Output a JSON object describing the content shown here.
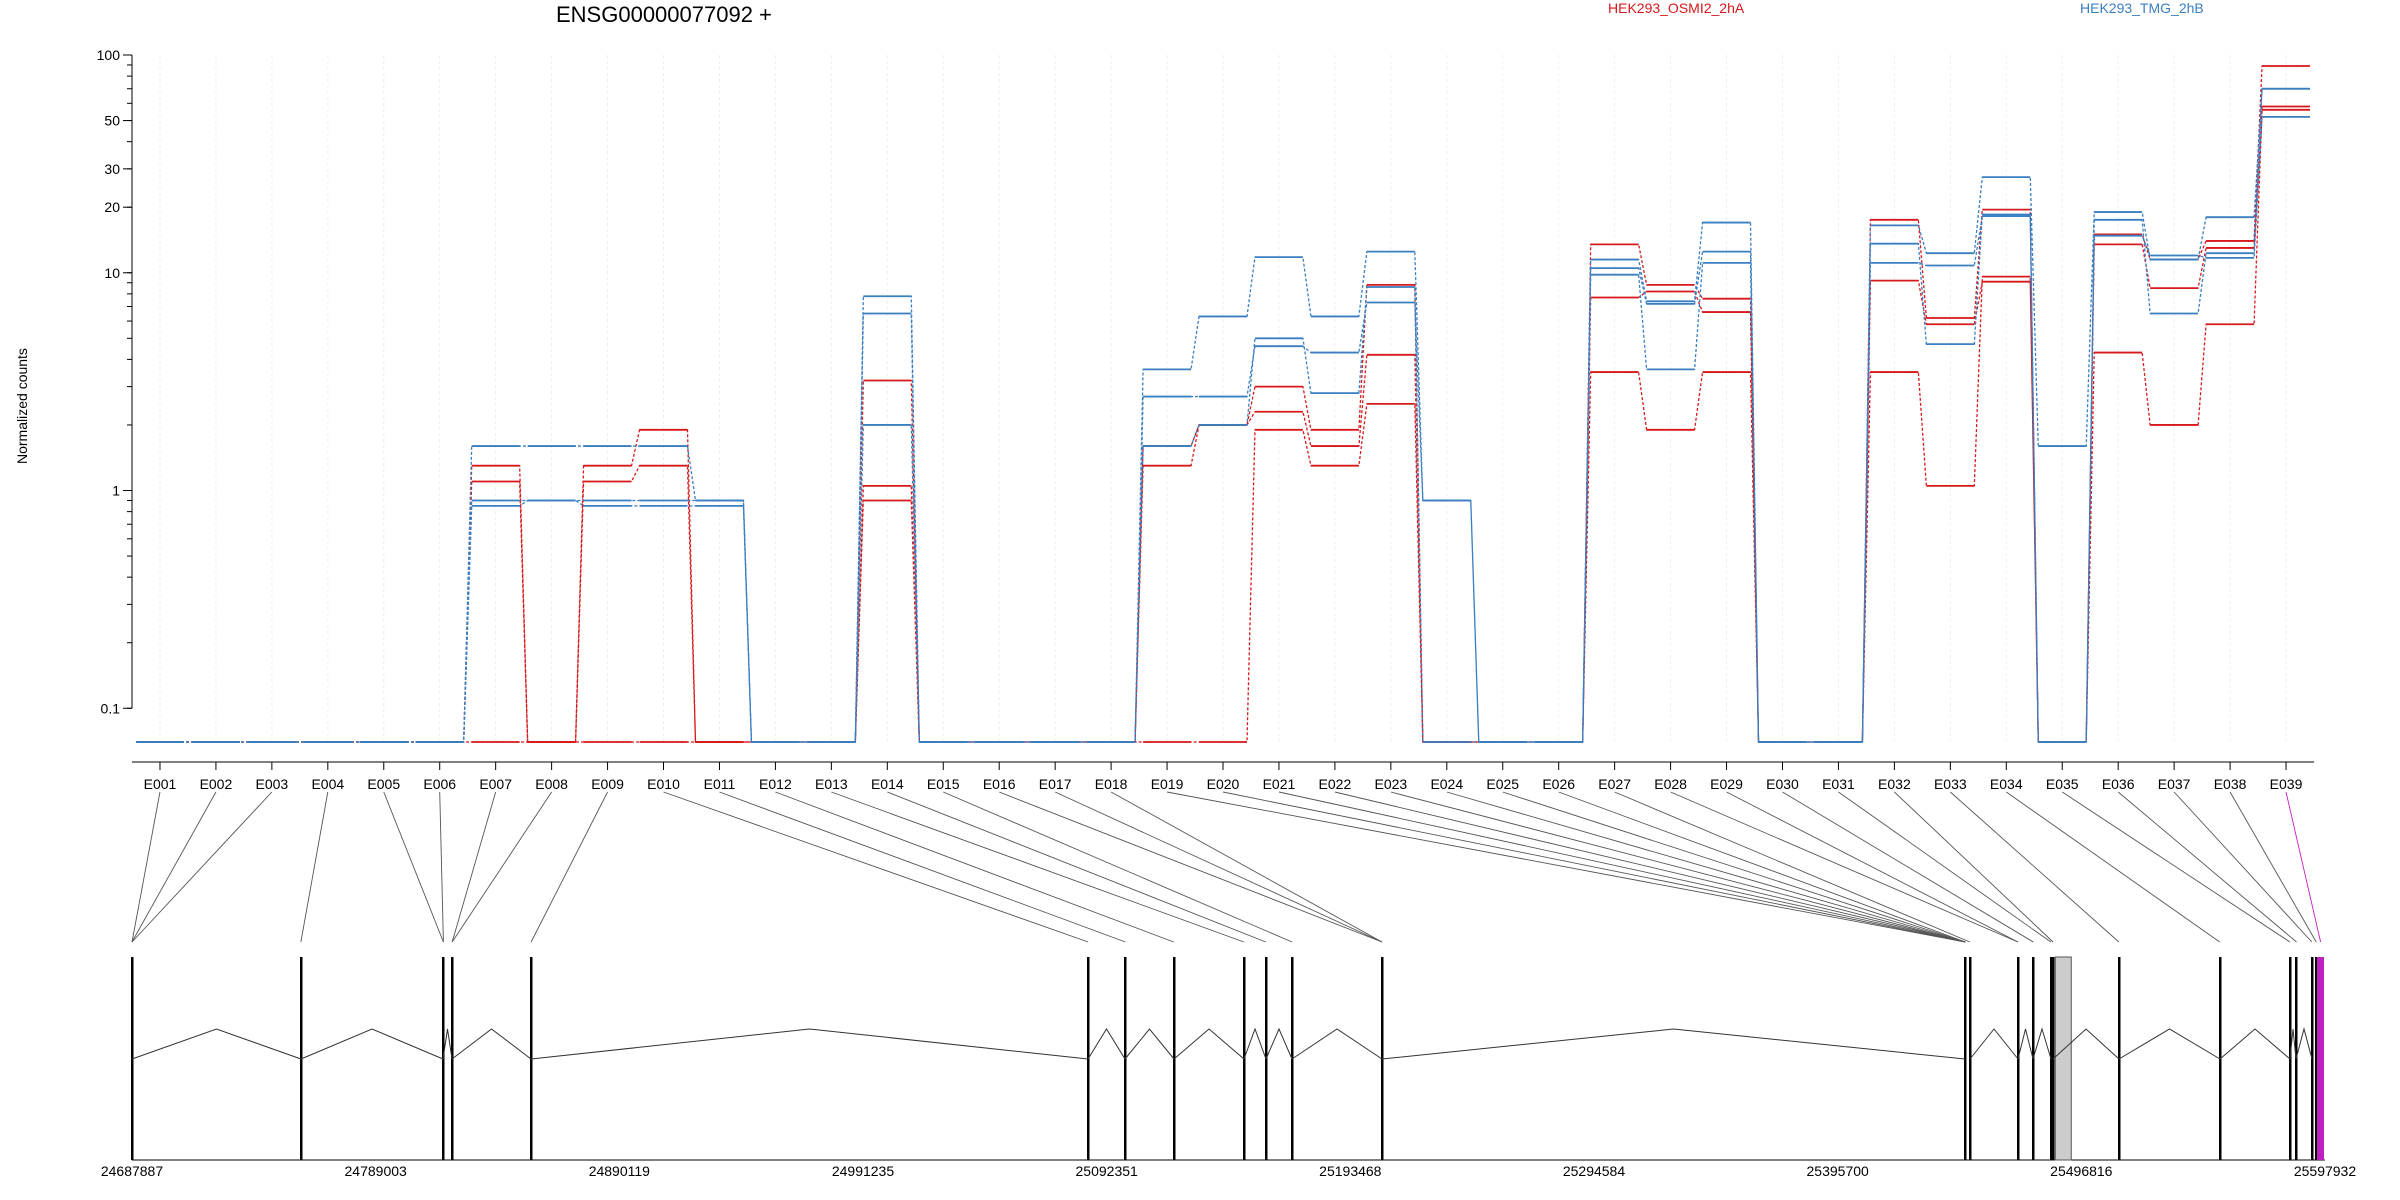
{
  "title": "ENSG00000077092 +",
  "ylabel": "Normalized counts",
  "colors": {
    "osmi": "#d7191c",
    "tmg": "#3a7fc0",
    "model": "#555555",
    "selected": "#c020c0"
  },
  "chart_data": {
    "type": "line",
    "title": "ENSG00000077092 +",
    "xlabel": "",
    "ylabel": "Normalized counts",
    "y_scale": "log",
    "ylim": [
      0.07,
      100
    ],
    "yticks": [
      0.1,
      1,
      10,
      20,
      30,
      50,
      100
    ],
    "ytick_labels": [
      "0.1",
      "1",
      "10",
      "20",
      "30",
      "50",
      "100"
    ],
    "legend": "top",
    "categories": [
      "E001",
      "E002",
      "E003",
      "E004",
      "E005",
      "E006",
      "E007",
      "E008",
      "E009",
      "E010",
      "E011",
      "E012",
      "E013",
      "E014",
      "E015",
      "E016",
      "E017",
      "E018",
      "E019",
      "E020",
      "E021",
      "E022",
      "E023",
      "E024",
      "E025",
      "E026",
      "E027",
      "E028",
      "E029",
      "E030",
      "E031",
      "E032",
      "E033",
      "E034",
      "E035",
      "E036",
      "E037",
      "E038",
      "E039"
    ],
    "series": [
      {
        "name": "HEK293_OSMI2_2hA",
        "group": "HEK293_OSMI2_2hA",
        "values": [
          0.07,
          0.07,
          0.07,
          0.07,
          0.07,
          0.07,
          1.3,
          0.07,
          1.3,
          1.9,
          0.07,
          0.07,
          0.07,
          3.2,
          0.07,
          0.07,
          0.07,
          0.07,
          1.6,
          2.0,
          3.0,
          1.9,
          8.8,
          0.07,
          0.07,
          0.07,
          13.5,
          8.8,
          7.6,
          0.07,
          0.07,
          17.5,
          6.2,
          19.5,
          0.07,
          15.0,
          11.5,
          14.0,
          89
        ]
      },
      {
        "name": "HEK293_OSMI2_2hA",
        "group": "HEK293_OSMI2_2hA",
        "values": [
          0.07,
          0.07,
          0.07,
          0.07,
          0.07,
          0.07,
          1.1,
          0.07,
          1.1,
          1.3,
          0.07,
          0.07,
          0.07,
          1.05,
          0.07,
          0.07,
          0.07,
          0.07,
          1.3,
          2.0,
          2.3,
          1.6,
          4.2,
          0.07,
          0.07,
          0.07,
          7.7,
          8.2,
          6.6,
          0.07,
          0.07,
          9.2,
          5.8,
          9.1,
          0.07,
          13.5,
          8.5,
          13.0,
          58
        ]
      },
      {
        "name": "HEK293_OSMI2_2hA",
        "group": "HEK293_OSMI2_2hA",
        "values": [
          0.07,
          0.07,
          0.07,
          0.07,
          0.07,
          0.07,
          0.07,
          0.07,
          0.07,
          0.07,
          0.07,
          0.07,
          0.07,
          0.9,
          0.07,
          0.07,
          0.07,
          0.07,
          0.07,
          0.07,
          1.9,
          1.3,
          2.5,
          0.07,
          0.07,
          0.07,
          3.5,
          1.9,
          3.5,
          0.07,
          0.07,
          3.5,
          1.05,
          9.6,
          0.07,
          4.3,
          2.0,
          5.8,
          56
        ]
      },
      {
        "name": "HEK293_TMG_2hB",
        "group": "HEK293_TMG_2hB",
        "values": [
          0.07,
          0.07,
          0.07,
          0.07,
          0.07,
          0.07,
          1.6,
          1.6,
          1.6,
          1.6,
          0.9,
          0.07,
          0.07,
          7.8,
          0.07,
          0.07,
          0.07,
          0.07,
          3.6,
          6.3,
          11.8,
          6.3,
          12.5,
          0.9,
          0.07,
          0.07,
          11.5,
          7.4,
          17.0,
          0.07,
          0.07,
          16.5,
          12.3,
          27.5,
          1.6,
          19.0,
          11.5,
          18.0,
          70
        ]
      },
      {
        "name": "HEK293_TMG_2hB",
        "group": "HEK293_TMG_2hB",
        "values": [
          0.07,
          0.07,
          0.07,
          0.07,
          0.07,
          0.07,
          0.9,
          0.9,
          0.9,
          0.9,
          0.9,
          0.07,
          0.07,
          6.5,
          0.07,
          0.07,
          0.07,
          0.07,
          2.7,
          2.7,
          4.6,
          4.3,
          7.3,
          0.9,
          0.07,
          0.07,
          10.5,
          7.2,
          12.5,
          0.07,
          0.07,
          11.1,
          10.8,
          18.2,
          0.07,
          17.5,
          6.5,
          12.3,
          70
        ]
      },
      {
        "name": "HEK293_TMG_2hB",
        "group": "HEK293_TMG_2hB",
        "values": [
          0.07,
          0.07,
          0.07,
          0.07,
          0.07,
          0.07,
          0.85,
          0.9,
          0.85,
          0.85,
          0.85,
          0.07,
          0.07,
          2.0,
          0.07,
          0.07,
          0.07,
          0.07,
          1.6,
          2.0,
          5.0,
          2.8,
          8.6,
          0.07,
          0.07,
          0.07,
          9.8,
          3.6,
          11.1,
          0.07,
          0.07,
          13.6,
          4.7,
          18.5,
          0.07,
          14.8,
          12.0,
          11.7,
          52
        ]
      }
    ],
    "genomic_axis": {
      "ticks": [
        24687887,
        24789003,
        24890119,
        24991235,
        25092351,
        25193468,
        25294584,
        25395700,
        25496816,
        25597932
      ],
      "tick_labels": [
        "24687887",
        "24789003",
        "24890119",
        "24991235",
        "25092351",
        "25193468",
        "25294584",
        "25395700",
        "25496816",
        "25597932"
      ]
    },
    "legend_entries": [
      "HEK293_OSMI2_2hA",
      "HEK293_TMG_2hB"
    ]
  }
}
